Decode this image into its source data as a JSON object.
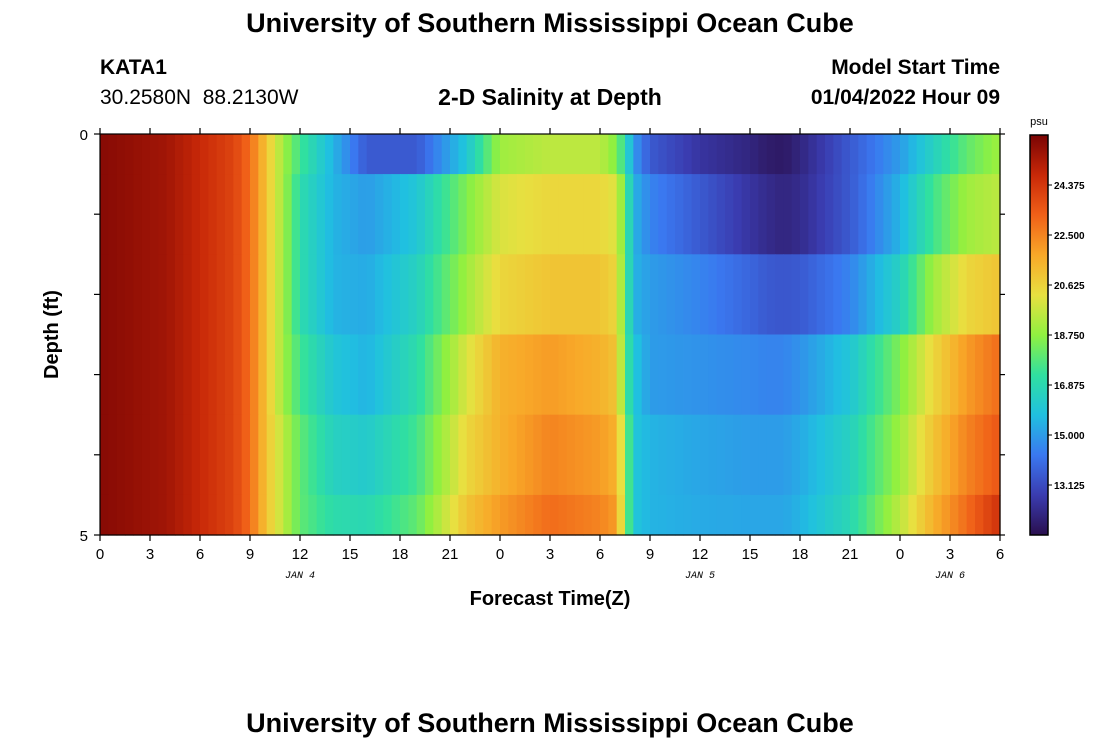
{
  "header": {
    "title": "University of Southern Mississippi Ocean Cube",
    "station_id": "KATA1",
    "station_coords": "30.2580N  88.2130W",
    "subtitle": "2-D Salinity at Depth",
    "model_label": "Model Start Time",
    "model_time": "01/04/2022 Hour 09"
  },
  "footer": {
    "title": "University of Southern Mississippi Ocean Cube"
  },
  "chart_data": {
    "type": "heatmap",
    "xlabel": "Forecast Time(Z)",
    "ylabel": "Depth (ft)",
    "xlim": [
      0,
      54
    ],
    "ylim": [
      0,
      5
    ],
    "x_ticks": [
      0,
      3,
      6,
      9,
      12,
      15,
      18,
      21,
      24,
      27,
      30,
      33,
      36,
      39,
      42,
      45,
      48,
      51,
      54
    ],
    "x_tick_labels": [
      "0",
      "3",
      "6",
      "9",
      "12",
      "15",
      "18",
      "21",
      "0",
      "3",
      "6",
      "9",
      "12",
      "15",
      "18",
      "21",
      "0",
      "3",
      "6"
    ],
    "y_ticks": [
      0,
      5
    ],
    "y_tick_labels": [
      "0",
      "5"
    ],
    "date_labels": [
      {
        "x": 12,
        "text": "JAN 4"
      },
      {
        "x": 36,
        "text": "JAN 5"
      },
      {
        "x": 51,
        "text": "JAN 6"
      }
    ],
    "colorbar": {
      "unit": "psu",
      "min": 11.25,
      "max": 26.25,
      "ticks": [
        "24.375",
        "22.500",
        "20.625",
        "18.750",
        "16.875",
        "15.000",
        "13.125"
      ],
      "colors": [
        "#2a0f4e",
        "#3a3cb0",
        "#3a78f0",
        "#20c0e0",
        "#30e0a0",
        "#90f040",
        "#e8e040",
        "#f8a828",
        "#f06018",
        "#c82808",
        "#7a0404"
      ]
    },
    "depth_layers": [
      {
        "top": 0.0,
        "bottom": 0.5
      },
      {
        "top": 0.5,
        "bottom": 1.5
      },
      {
        "top": 1.5,
        "bottom": 2.5
      },
      {
        "top": 2.5,
        "bottom": 3.5
      },
      {
        "top": 3.5,
        "bottom": 4.5
      },
      {
        "top": 4.5,
        "bottom": 5.0
      }
    ],
    "time_knots": [
      0,
      4,
      8,
      9,
      10,
      11,
      12,
      14,
      16,
      19,
      22,
      24,
      27,
      30,
      31,
      31.5,
      32,
      33,
      36,
      39,
      40,
      41,
      42,
      45,
      48,
      50,
      52,
      54
    ],
    "salinity": [
      [
        26.0,
        25.5,
        24.0,
        23.0,
        21.0,
        19.0,
        17.5,
        15.5,
        13.5,
        13.5,
        16.0,
        19.0,
        19.5,
        19.5,
        18.5,
        17.0,
        15.0,
        13.5,
        12.5,
        12.0,
        11.7,
        11.6,
        12.0,
        13.5,
        15.0,
        16.5,
        18.0,
        19.0
      ],
      [
        26.0,
        25.5,
        24.0,
        23.0,
        21.0,
        19.0,
        17.0,
        15.5,
        15.0,
        16.0,
        18.5,
        20.0,
        20.5,
        20.5,
        20.0,
        18.0,
        15.5,
        14.5,
        13.5,
        12.5,
        12.2,
        12.0,
        12.2,
        13.5,
        15.5,
        17.5,
        19.0,
        19.5
      ],
      [
        26.0,
        25.5,
        24.0,
        23.0,
        21.0,
        19.0,
        17.0,
        15.5,
        15.3,
        16.5,
        19.0,
        20.5,
        21.0,
        21.0,
        20.5,
        18.0,
        15.5,
        15.0,
        14.5,
        13.8,
        13.5,
        13.4,
        13.5,
        14.5,
        16.5,
        19.0,
        20.5,
        21.0
      ],
      [
        26.0,
        25.5,
        24.0,
        23.0,
        21.0,
        19.0,
        17.5,
        16.0,
        15.5,
        17.0,
        20.0,
        21.5,
        22.0,
        21.5,
        21.0,
        18.0,
        16.0,
        15.0,
        14.8,
        14.6,
        14.5,
        14.5,
        14.8,
        16.0,
        18.5,
        20.5,
        22.0,
        23.0
      ],
      [
        26.0,
        25.5,
        24.0,
        23.0,
        21.0,
        19.5,
        18.0,
        16.5,
        16.2,
        17.5,
        20.5,
        21.5,
        22.5,
        22.0,
        21.5,
        19.0,
        16.0,
        15.5,
        15.2,
        15.0,
        15.0,
        15.0,
        15.3,
        16.5,
        19.0,
        21.0,
        22.5,
        23.5
      ],
      [
        26.0,
        25.5,
        24.0,
        23.0,
        21.0,
        19.5,
        18.0,
        17.0,
        16.8,
        18.0,
        21.0,
        22.0,
        23.0,
        22.5,
        22.0,
        19.0,
        16.0,
        15.5,
        15.3,
        15.2,
        15.2,
        15.2,
        15.5,
        16.8,
        19.5,
        21.5,
        23.0,
        24.5
      ]
    ]
  }
}
